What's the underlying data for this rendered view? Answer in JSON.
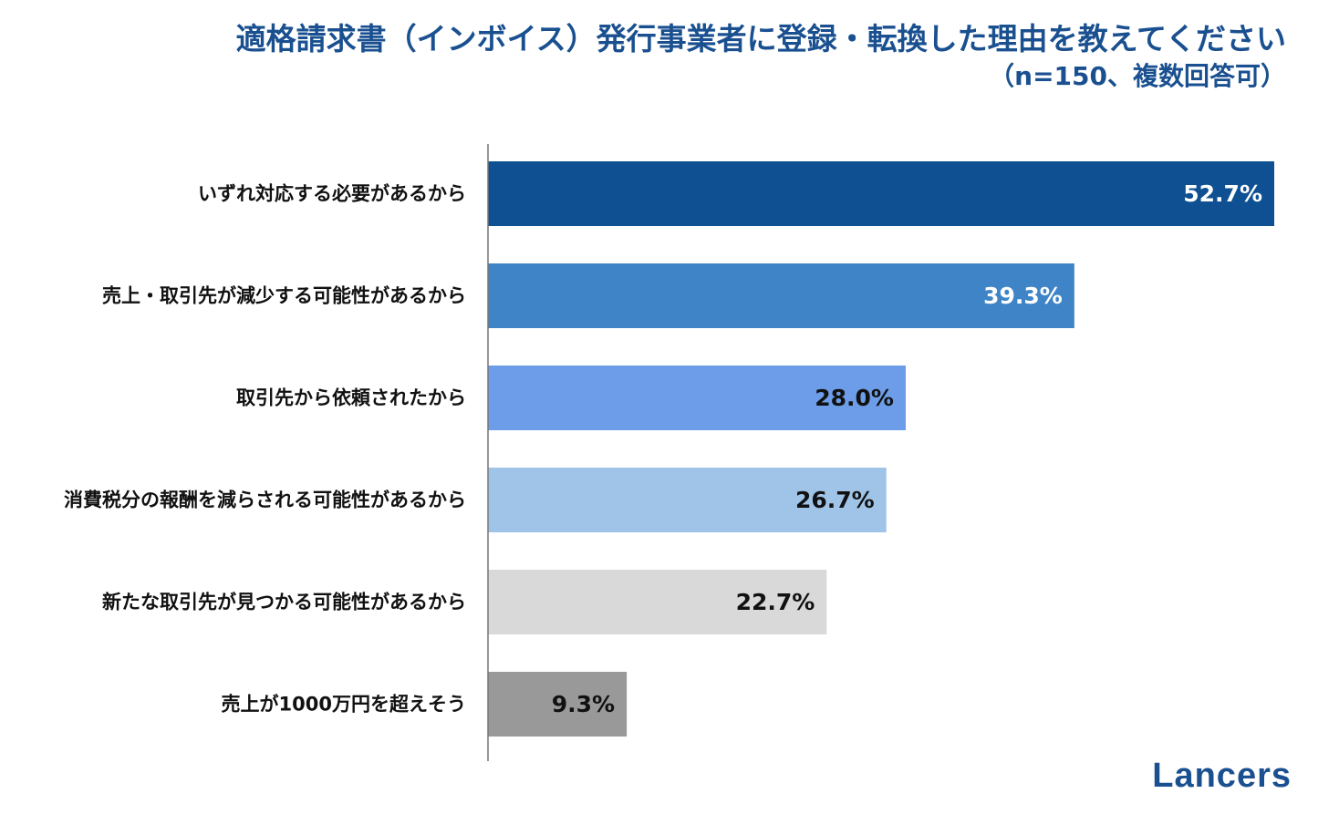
{
  "page": {
    "title": "適格請求書（インボイス）発行事業者に登録・転換した理由を教えてください",
    "subtitle": "（n=150、複数回答可）",
    "brand": "Lancers"
  },
  "colors": {
    "title": "#1a5090",
    "axis": "#777777"
  },
  "chart_data": {
    "type": "bar",
    "orientation": "horizontal",
    "title": "適格請求書（インボイス）発行事業者に登録・転換した理由を教えてください",
    "subtitle": "（n=150、複数回答可）",
    "xlabel": "",
    "ylabel": "",
    "xlim": [
      0,
      55
    ],
    "grid": false,
    "unit": "%",
    "categories": [
      "いずれ対応する必要があるから",
      "売上・取引先が減少する可能性があるから",
      "取引先から依頼されたから",
      "消費税分の報酬を減らされる可能性があるから",
      "新たな取引先が見つかる可能性があるから",
      "売上が1000万円を超えそう"
    ],
    "values": [
      52.7,
      39.3,
      28.0,
      26.7,
      22.7,
      9.3
    ],
    "value_labels": [
      "52.7%",
      "39.3%",
      "28.0%",
      "26.7%",
      "22.7%",
      "9.3%"
    ],
    "bar_colors": [
      "#0f5092",
      "#3f84c6",
      "#6d9de8",
      "#a0c4e8",
      "#d9d9d9",
      "#999999"
    ],
    "label_colors": [
      "#ffffff",
      "#ffffff",
      "#111111",
      "#111111",
      "#111111",
      "#111111"
    ]
  }
}
